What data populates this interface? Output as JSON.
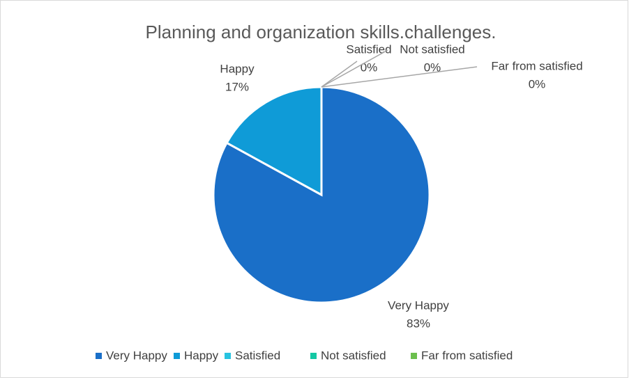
{
  "chart_data": {
    "type": "pie",
    "title": "Planning and organization skills.challenges.",
    "categories": [
      "Very Happy",
      "Happy",
      "Satisfied",
      "Not satisfied",
      "Far from satisfied"
    ],
    "values": [
      83,
      17,
      0,
      0,
      0
    ],
    "value_labels": [
      "83%",
      "17%",
      "0%",
      "0%",
      "0%"
    ],
    "colors": [
      "#1a6fc8",
      "#0f9bd7",
      "#28c3e0",
      "#14c8a4",
      "#6cbf4e"
    ],
    "legend": "bottom"
  }
}
